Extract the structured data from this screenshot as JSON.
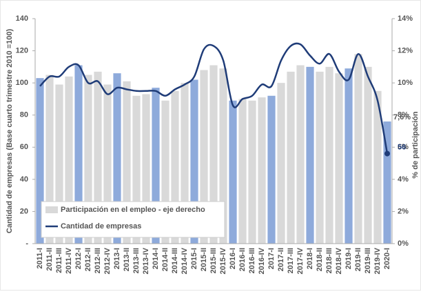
{
  "chart_data": {
    "type": "bar-line",
    "y_label": "Cantidad de empresas (Base cuarto trimestre 2010 =100)",
    "y2_label": "% de participación",
    "categories": [
      "2011-I",
      "2011-II",
      "2011-III",
      "2011-IV",
      "2012-I",
      "2012-II",
      "2012-III",
      "2012-IV",
      "2013-I",
      "2013-II",
      "2013-III",
      "2013-IV",
      "2014-I",
      "2014-II",
      "2014-III",
      "2014-IV",
      "2015-I",
      "2015-II",
      "2015-III",
      "2015-IV",
      "2016-I",
      "2016-II",
      "2016-III",
      "2016-IV",
      "2017-I",
      "2017-II",
      "2017-III",
      "2017-IV",
      "2018-I",
      "2018-II",
      "2018-III",
      "2018-IV",
      "2019-I",
      "2019-II",
      "2019-III",
      "2019-IV",
      "2020-I"
    ],
    "ylim": [
      0,
      140
    ],
    "yticks": [
      {
        "value": 0,
        "label": "-"
      },
      20,
      40,
      60,
      80,
      100,
      120,
      140
    ],
    "y2lim": [
      0,
      14
    ],
    "y2ticks": [
      {
        "value": 0,
        "label": "0%"
      },
      {
        "value": 2,
        "label": "2%"
      },
      {
        "value": 4,
        "label": "4%"
      },
      {
        "value": 6,
        "label": "6%"
      },
      {
        "value": 8,
        "label": "8%"
      },
      {
        "value": 10,
        "label": "10%"
      },
      {
        "value": 12,
        "label": "12%"
      },
      {
        "value": 14,
        "label": "14%"
      }
    ],
    "grid": false,
    "legend": "lower left",
    "series": [
      {
        "name": "Participación en el empleo - eje derecho",
        "type": "bar",
        "axis": "y2",
        "color": "#d9d9d9",
        "colors": [
          "#8eaadb",
          "#d9d9d9",
          "#d9d9d9",
          "#d9d9d9",
          "#8eaadb",
          "#d9d9d9",
          "#d9d9d9",
          "#d9d9d9",
          "#8eaadb",
          "#d9d9d9",
          "#d9d9d9",
          "#d9d9d9",
          "#8eaadb",
          "#d9d9d9",
          "#d9d9d9",
          "#d9d9d9",
          "#8eaadb",
          "#d9d9d9",
          "#d9d9d9",
          "#d9d9d9",
          "#8eaadb",
          "#d9d9d9",
          "#d9d9d9",
          "#d9d9d9",
          "#8eaadb",
          "#d9d9d9",
          "#d9d9d9",
          "#d9d9d9",
          "#8eaadb",
          "#d9d9d9",
          "#d9d9d9",
          "#d9d9d9",
          "#8eaadb",
          "#d9d9d9",
          "#d9d9d9",
          "#d9d9d9",
          "#8eaadb"
        ],
        "values": [
          10.3,
          10.5,
          9.9,
          10.4,
          11.1,
          10.5,
          10.7,
          9.9,
          10.6,
          10.1,
          9.2,
          9.3,
          9.7,
          8.9,
          9.5,
          10.0,
          10.2,
          10.8,
          11.1,
          10.9,
          8.9,
          9.0,
          8.9,
          9.1,
          9.2,
          10.0,
          10.7,
          11.1,
          11.0,
          10.7,
          11.0,
          10.6,
          10.9,
          11.8,
          11.0,
          9.5,
          7.6
        ],
        "value_labels": [
          null,
          null,
          null,
          null,
          null,
          null,
          null,
          null,
          null,
          null,
          null,
          null,
          null,
          null,
          null,
          null,
          null,
          null,
          null,
          null,
          null,
          null,
          null,
          null,
          null,
          null,
          null,
          null,
          null,
          null,
          null,
          null,
          null,
          null,
          null,
          null,
          "7,6%"
        ]
      },
      {
        "name": "Cantidad de empresas",
        "type": "line",
        "color": "#1f3c78",
        "values": [
          98,
          104,
          104,
          110,
          111,
          100,
          101,
          93,
          97,
          96,
          95,
          95,
          95,
          92,
          96,
          99,
          104,
          121,
          123,
          114,
          86,
          90,
          92,
          99,
          98,
          114,
          123,
          124,
          117,
          112,
          118,
          107,
          102,
          118,
          104,
          89,
          56
        ],
        "value_labels": [
          null,
          null,
          null,
          null,
          null,
          null,
          null,
          null,
          null,
          null,
          null,
          null,
          null,
          null,
          null,
          null,
          null,
          null,
          null,
          null,
          null,
          null,
          null,
          null,
          null,
          null,
          null,
          null,
          null,
          null,
          null,
          null,
          null,
          null,
          null,
          null,
          "56"
        ]
      }
    ]
  }
}
